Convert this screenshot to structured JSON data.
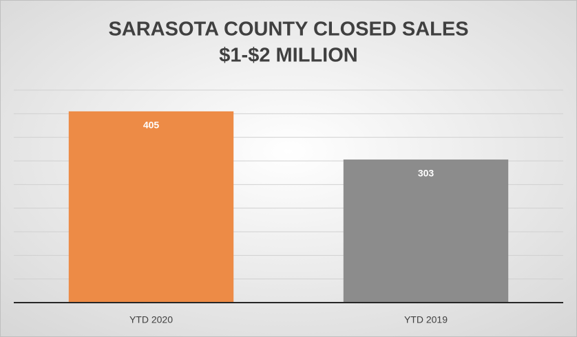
{
  "chart_data": {
    "type": "bar",
    "title": [
      "SARASOTA COUNTY CLOSED SALES",
      "$1-$2 MILLION"
    ],
    "categories": [
      "YTD 2020",
      "YTD 2019"
    ],
    "values": [
      405,
      303
    ],
    "colors": [
      "#ed8b46",
      "#8c8c8c"
    ],
    "ylim": [
      0,
      450
    ],
    "yticks": [
      0,
      50,
      100,
      150,
      200,
      250,
      300,
      350,
      400,
      450
    ],
    "grid": true
  }
}
